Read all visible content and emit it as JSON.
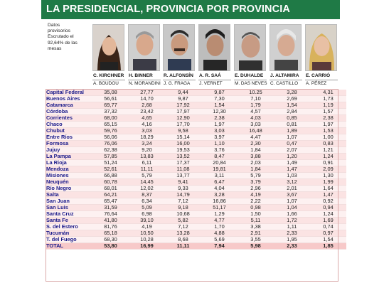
{
  "title": "LA PRESIDENCIAL, PROVINCIA POR PROVINCIA",
  "note_lines": [
    "Datos",
    "provisorios",
    "Escrutado el",
    "92,64% de las",
    "mesas"
  ],
  "candidates": [
    {
      "name": "C. KIRCHNER",
      "running_mate": "A. BOUDOU",
      "photo": "portrait-woman-dark-hair"
    },
    {
      "name": "H. BINNER",
      "running_mate": "N. MORANDINI",
      "photo": "portrait-man-grey-hair"
    },
    {
      "name": "R. ALFONSÍN",
      "running_mate": "J. G. FRAGA",
      "photo": "portrait-man-mustache"
    },
    {
      "name": "A. R. SAÁ",
      "running_mate": "J. VERNET",
      "photo": "portrait-man-dark-hair"
    },
    {
      "name": "E. DUHALDE",
      "running_mate": "M. DAS NEVES",
      "photo": "portrait-man-older"
    },
    {
      "name": "J. ALTAMIRA",
      "running_mate": "C. CASTILLO",
      "photo": "portrait-man-white-hair"
    },
    {
      "name": "E. CARRIÓ",
      "running_mate": "A. PÉREZ",
      "photo": "portrait-woman-blonde"
    }
  ],
  "rows": [
    {
      "province": "Capital Federal",
      "values": [
        "35,08",
        "27,77",
        "9,44",
        "9,87",
        "10.25",
        "3,28",
        "4,31"
      ]
    },
    {
      "province": "Buenos Aires",
      "values": [
        "56,61",
        "14,70",
        "9,87",
        "7,30",
        "7,10",
        "2,69",
        "1,73"
      ]
    },
    {
      "province": "Catamarca",
      "values": [
        "69,77",
        "2,68",
        "17,92",
        "1,54",
        "1,79",
        "1,54",
        "1,19"
      ]
    },
    {
      "province": "Córdoba",
      "values": [
        "37,32",
        "23,42",
        "17,97",
        "12,30",
        "4,57",
        "2,84",
        "1,57"
      ]
    },
    {
      "province": "Corrientes",
      "values": [
        "68,00",
        "4,65",
        "12,90",
        "2,38",
        "4,03",
        "0,85",
        "2,38"
      ]
    },
    {
      "province": "Chaco",
      "values": [
        "65,15",
        "4,16",
        "17,70",
        "1,97",
        "3,03",
        "0,81",
        "1,97"
      ]
    },
    {
      "province": "Chubut",
      "values": [
        "59,76",
        "3,03",
        "9,58",
        "3,03",
        "16,48",
        "1,89",
        "1,53"
      ]
    },
    {
      "province": "Entre Ríos",
      "values": [
        "56,06",
        "18,29",
        "15,14",
        "3,97",
        "4,47",
        "1,07",
        "1,00"
      ]
    },
    {
      "province": "Formosa",
      "values": [
        "76,06",
        "3,24",
        "16,00",
        "1,10",
        "2,30",
        "0,47",
        "0,83"
      ]
    },
    {
      "province": "Jujuy",
      "values": [
        "62,38",
        "9,20",
        "19,53",
        "3,76",
        "1,84",
        "2,07",
        "1,21"
      ]
    },
    {
      "province": "La Pampa",
      "values": [
        "57,85",
        "13,83",
        "13,52",
        "8,47",
        "3,88",
        "1,20",
        "1,24"
      ]
    },
    {
      "province": "La Rioja",
      "values": [
        "51,24",
        "6,11",
        "17,37",
        "20,84",
        "2,03",
        "1,49",
        "0,91"
      ]
    },
    {
      "province": "Mendoza",
      "values": [
        "52,61",
        "11,11",
        "11,08",
        "19,81",
        "1,84",
        "1,47",
        "2,09"
      ]
    },
    {
      "province": "Misiones",
      "values": [
        "66,88",
        "5,79",
        "13,77",
        "3,11",
        "5,79",
        "1,03",
        "1,30"
      ]
    },
    {
      "province": "Neuquén",
      "values": [
        "60,78",
        "14,45",
        "9,41",
        "6,47",
        "3,79",
        "3,12",
        "1,99"
      ]
    },
    {
      "province": "Río Negro",
      "values": [
        "68,01",
        "12,02",
        "9,33",
        "4,04",
        "2,96",
        "2,01",
        "1,64"
      ]
    },
    {
      "province": "Salta",
      "values": [
        "64,21",
        "8,37",
        "14,79",
        "3,28",
        "4,19",
        "3,67",
        "1,47"
      ]
    },
    {
      "province": "San Juan",
      "values": [
        "65,47",
        "6,34",
        "7,12",
        "16,86",
        "2,22",
        "1,07",
        "0,92"
      ]
    },
    {
      "province": "San Luis",
      "values": [
        "31,59",
        "5,09",
        "9,18",
        "51,17",
        "0,98",
        "1,04",
        "0,94"
      ]
    },
    {
      "province": "Santa Cruz",
      "values": [
        "76,64",
        "6,98",
        "10,68",
        "1,29",
        "1,50",
        "1,66",
        "1,24"
      ]
    },
    {
      "province": "Santa Fe",
      "values": [
        "41,80",
        "39,10",
        "5,82",
        "4,77",
        "5,11",
        "1,72",
        "1,69"
      ]
    },
    {
      "province": "S. del Estero",
      "values": [
        "81,76",
        "4,19",
        "7,12",
        "1,70",
        "3,38",
        "1,11",
        "0,74"
      ]
    },
    {
      "province": "Tucumán",
      "values": [
        "65,18",
        "10,50",
        "13,28",
        "4,88",
        "2,91",
        "2,33",
        "0,97"
      ]
    },
    {
      "province": "T. del Fuego",
      "values": [
        "68,30",
        "10,28",
        "8,68",
        "5,69",
        "3,55",
        "1,95",
        "1,54"
      ]
    }
  ],
  "total": {
    "province": "TOTAL",
    "values": [
      "53,80",
      "16,99",
      "11,11",
      "7,94",
      "5,98",
      "2,33",
      "1,85"
    ]
  },
  "colors": {
    "header_green": "#1f7a46",
    "row_pink": "#fbe3e3",
    "province_text": "#1a1a8a"
  }
}
